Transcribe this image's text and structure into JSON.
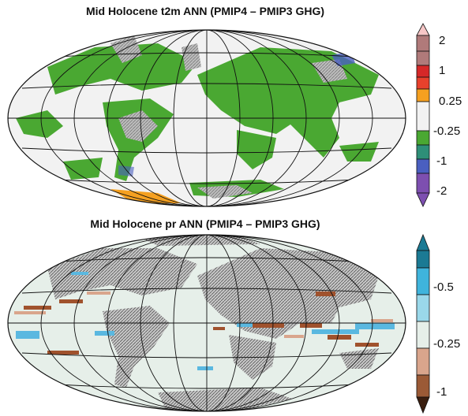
{
  "panels": [
    {
      "title": "Mid Holocene t2m ANN (PMIP4 – PMIP3 GHG)",
      "colorbar": {
        "labels": [
          "2",
          "1",
          "0.25",
          "-0.25",
          "-1",
          "-2"
        ],
        "colors": [
          "#f7c7c7",
          "#b07a7a",
          "#d62828",
          "#e8412c",
          "#f5a020",
          "#f2f2f2",
          "#4aa832",
          "#2e8f78",
          "#4a5fc0",
          "#7d4fb0"
        ]
      },
      "map_colors": {
        "ocean": "#f2f2f2",
        "land_signal": "#4aa832",
        "hatch": "#9a9a9a",
        "warm": "#f5a020",
        "cool": "#4a5fc0"
      }
    },
    {
      "title": "Mid Holocene pr ANN (PMIP4 – PMIP3 GHG)",
      "colorbar": {
        "labels": [
          "-0.5",
          "-0.25",
          "-1"
        ],
        "colors": [
          "#1b7a94",
          "#3fb4dc",
          "#9ad8ea",
          "#e6efe9",
          "#d9a58c",
          "#9b5a36",
          "#3a1e0f"
        ]
      },
      "map_colors": {
        "ocean": "#e6efe9",
        "wet": "#5ab8e0",
        "dry": "#a0522d",
        "hatch": "#7a7a7a"
      }
    }
  ]
}
